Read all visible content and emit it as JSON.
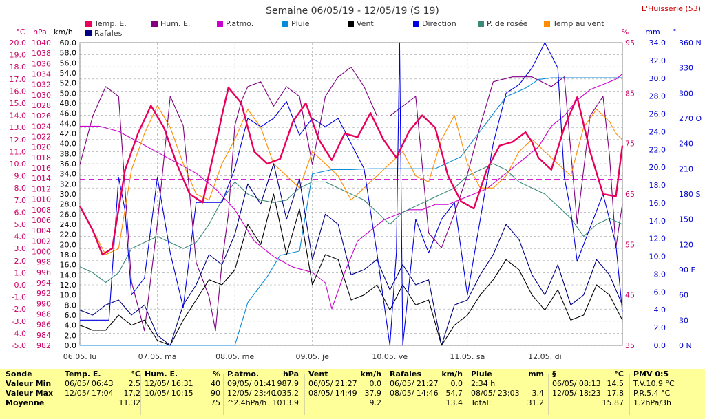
{
  "title": "Semaine 06/05/19 - 12/05/19 (S 19)",
  "station": "L'Huisserie (53)",
  "colors": {
    "temp": "#e8005a",
    "hum": "#800080",
    "patmo": "#cc00cc",
    "pluie": "#0a8ad8",
    "vent": "#000000",
    "direction": "#0000e0",
    "rosee": "#3a8a7a",
    "tempvent": "#ff8c00",
    "rafales": "#000080",
    "grid": "#9aa0a0",
    "axis_left": "#cc0066",
    "axis_right": "#0000cc"
  },
  "chart_data": {
    "type": "line",
    "title": "Semaine 06/05/19 - 12/05/19 (S 19)",
    "x_labels": [
      "06.05. lu",
      "07.05. ma",
      "08.05. me",
      "09.05. je",
      "10.05. ve",
      "11.05. sa",
      "12.05. di"
    ],
    "x_unit": "hours since 06/05 00:00",
    "xlim": [
      0,
      168
    ],
    "axes": {
      "temp": {
        "unit": "°C",
        "ticks": [
          "20.0",
          "19.0",
          "18.0",
          "17.0",
          "16.0",
          "15.0",
          "14.0",
          "13.0",
          "12.0",
          "11.0",
          "10.0",
          "9.0",
          "8.0",
          "7.0",
          "6.0",
          "5.0",
          "4.0",
          "3.0",
          "2.0",
          "1.0",
          "0.0",
          "-1.0",
          "-2.0",
          "-3.0",
          "-4.0",
          "-5.0"
        ],
        "range": [
          -5,
          20
        ]
      },
      "press": {
        "unit": "hPa",
        "ticks": [
          "1040",
          "1038",
          "1036",
          "1034",
          "1032",
          "1030",
          "1028",
          "1026",
          "1024",
          "1022",
          "1020",
          "1018",
          "1016",
          "1014",
          "1012",
          "1010",
          "1008",
          "1006",
          "1004",
          "1002",
          "1000",
          "998",
          "996",
          "994",
          "992",
          "990",
          "988",
          "986",
          "984",
          "982"
        ],
        "range": [
          982,
          1040
        ]
      },
      "wind": {
        "unit": "km/h",
        "ticks": [
          "60.0",
          "58.0",
          "56.0",
          "54.0",
          "52.0",
          "50.0",
          "48.0",
          "46.0",
          "44.0",
          "42.0",
          "40.0",
          "38.0",
          "36.0",
          "34.0",
          "32.0",
          "30.0",
          "28.0",
          "26.0",
          "24.0",
          "22.0",
          "20.0",
          "18.0",
          "16.0",
          "14.0",
          "12.0",
          "10.0",
          "8.0",
          "6.0",
          "4.0",
          "2.0",
          "0.0"
        ],
        "range": [
          0,
          60
        ]
      },
      "hum": {
        "unit": "%",
        "ticks": [
          "95",
          "85",
          "75",
          "65",
          "55",
          "45",
          "35"
        ],
        "range": [
          35,
          97
        ]
      },
      "rain": {
        "unit": "mm",
        "ticks": [
          "34.0",
          "32.0",
          "30.0",
          "28.0",
          "26.0",
          "24.0",
          "22.0",
          "20.0",
          "18.0",
          "16.0",
          "14.0",
          "12.0",
          "10.0",
          "8.0",
          "6.0",
          "4.0",
          "2.0",
          "0.0"
        ],
        "range": [
          0,
          35.3
        ]
      },
      "dir": {
        "unit": "°",
        "ticks": [
          "360 N",
          "330",
          "300",
          "270 O",
          "240",
          "210",
          "180 S",
          "150",
          "120",
          "90 E",
          "60",
          "30",
          "0 N"
        ],
        "range": [
          0,
          360
        ]
      }
    },
    "series": [
      {
        "name": "Temp. E.",
        "axis": "temp",
        "key": "temp",
        "x": [
          0,
          4,
          7,
          10,
          14,
          18,
          22,
          26,
          30,
          34,
          38,
          42,
          44,
          46,
          50,
          54,
          58,
          62,
          66,
          70,
          74,
          78,
          82,
          86,
          90,
          94,
          98,
          102,
          106,
          110,
          114,
          118,
          122,
          126,
          130,
          134,
          138,
          140,
          142,
          146,
          150,
          154,
          158,
          162,
          166,
          168
        ],
        "y": [
          6.5,
          4.5,
          2.5,
          3,
          9.5,
          12.5,
          14.8,
          13,
          10,
          7.5,
          6.8,
          11.5,
          14,
          16.3,
          15,
          11,
          10,
          10.4,
          13.5,
          15,
          12,
          10.3,
          12.5,
          12.2,
          14.2,
          12,
          10.5,
          12.7,
          14,
          13,
          9,
          6.9,
          6.3,
          9.5,
          11.5,
          11.8,
          12.6,
          11.8,
          10.5,
          9.5,
          13,
          15.5,
          11,
          7.5,
          7.3,
          11.5
        ]
      },
      {
        "name": "Hum. E.",
        "axis": "hum",
        "key": "hum",
        "x": [
          0,
          4,
          8,
          12,
          16,
          20,
          24,
          28,
          32,
          36,
          40,
          42,
          44,
          46,
          48,
          50,
          52,
          56,
          60,
          64,
          68,
          72,
          76,
          80,
          84,
          88,
          92,
          96,
          100,
          104,
          108,
          112,
          116,
          120,
          124,
          128,
          134,
          140,
          146,
          150,
          154,
          158,
          162,
          164,
          166,
          168
        ],
        "y": [
          72,
          82,
          88,
          86,
          48,
          38,
          60,
          86,
          80,
          52,
          45,
          38,
          52,
          62,
          80,
          85,
          88,
          89,
          84,
          88,
          86,
          72,
          86,
          90,
          92,
          88,
          82,
          82,
          84,
          86,
          58,
          55,
          62,
          70,
          80,
          89,
          90,
          90,
          88,
          90,
          60,
          82,
          86,
          74,
          55,
          64
        ]
      },
      {
        "name": "P.atmo.",
        "axis": "press",
        "key": "patmo",
        "x": [
          0,
          6,
          12,
          18,
          24,
          30,
          36,
          42,
          48,
          54,
          60,
          66,
          72,
          76,
          78,
          82,
          86,
          90,
          94,
          98,
          102,
          106,
          110,
          114,
          118,
          122,
          126,
          130,
          134,
          138,
          142,
          146,
          150,
          154,
          158,
          162,
          166,
          168
        ],
        "y": [
          1024,
          1024,
          1023,
          1021,
          1019,
          1017,
          1015,
          1012,
          1008,
          1002,
          999,
          997,
          996,
          994,
          989,
          996,
          1002,
          1004,
          1006,
          1007,
          1008,
          1008,
          1009,
          1009,
          1010,
          1011,
          1012,
          1014,
          1016,
          1018,
          1020,
          1024,
          1026,
          1029,
          1031,
          1032,
          1033,
          1034
        ]
      },
      {
        "name": "Pluie",
        "axis": "rain",
        "key": "pluie",
        "x": [
          0,
          12,
          24,
          36,
          42,
          45,
          48,
          52,
          58,
          62,
          68,
          72,
          78,
          84,
          90,
          98,
          106,
          110,
          118,
          122,
          126,
          130,
          132,
          138,
          142,
          146,
          150,
          154,
          158,
          162,
          168
        ],
        "y": [
          0,
          0,
          0,
          0,
          0,
          0,
          0,
          5,
          8,
          10.5,
          11,
          20,
          20.5,
          20.5,
          20.6,
          20.6,
          20.6,
          20.6,
          22,
          24,
          26,
          28,
          29,
          30,
          31,
          31.2,
          31.2,
          31.2,
          31.2,
          31.2,
          31.2
        ]
      },
      {
        "name": "Vent",
        "axis": "wind",
        "key": "vent",
        "x": [
          0,
          4,
          8,
          12,
          16,
          20,
          24,
          28,
          32,
          36,
          40,
          44,
          48,
          52,
          56,
          60,
          64,
          68,
          72,
          76,
          80,
          84,
          88,
          92,
          96,
          100,
          104,
          108,
          112,
          116,
          120,
          124,
          128,
          132,
          136,
          140,
          144,
          148,
          152,
          156,
          160,
          164,
          168
        ],
        "y": [
          4,
          3,
          3,
          6,
          4,
          5,
          1,
          0,
          5,
          9,
          13,
          12,
          15,
          24,
          20,
          30,
          18,
          27,
          12,
          18,
          17,
          9,
          10,
          12,
          7,
          12,
          8,
          9,
          0,
          4,
          6,
          10,
          13,
          17,
          15,
          10,
          7,
          11,
          5,
          6,
          12,
          10,
          5
        ]
      },
      {
        "name": "Direction",
        "axis": "dir",
        "key": "direction",
        "x": [
          0,
          3,
          6,
          9,
          12,
          14,
          16,
          18,
          20,
          24,
          28,
          32,
          36,
          40,
          44,
          48,
          52,
          56,
          60,
          64,
          68,
          72,
          76,
          80,
          84,
          88,
          92,
          96,
          98,
          99,
          100,
          104,
          108,
          112,
          116,
          120,
          124,
          128,
          132,
          136,
          140,
          144,
          148,
          150,
          152,
          154,
          158,
          162,
          166,
          168
        ],
        "y": [
          30,
          30,
          30,
          30,
          200,
          160,
          60,
          70,
          80,
          200,
          110,
          45,
          170,
          170,
          170,
          210,
          270,
          260,
          270,
          290,
          250,
          270,
          260,
          270,
          240,
          210,
          110,
          0,
          110,
          360,
          0,
          150,
          110,
          150,
          170,
          60,
          150,
          240,
          300,
          310,
          330,
          360,
          330,
          200,
          160,
          100,
          140,
          180,
          120,
          40
        ]
      },
      {
        "name": "P. de rosée",
        "axis": "temp",
        "key": "rosee",
        "x": [
          0,
          4,
          8,
          12,
          16,
          20,
          24,
          28,
          32,
          36,
          40,
          44,
          48,
          52,
          56,
          60,
          64,
          68,
          72,
          76,
          80,
          84,
          88,
          92,
          96,
          100,
          104,
          108,
          112,
          116,
          120,
          124,
          128,
          132,
          136,
          140,
          144,
          148,
          152,
          156,
          160,
          164,
          168
        ],
        "y": [
          1.5,
          1,
          0.2,
          1,
          3,
          3.5,
          4,
          3.5,
          3,
          3.5,
          5,
          7,
          8.5,
          7.5,
          7,
          6.8,
          7,
          8,
          8.5,
          8.5,
          8,
          7.5,
          7,
          6,
          5,
          6,
          6.5,
          7,
          7.5,
          8,
          9,
          9.5,
          10,
          9.5,
          8.5,
          8,
          7.5,
          6.5,
          5.5,
          4,
          5,
          5.5,
          5
        ]
      },
      {
        "name": "Temp au vent",
        "axis": "temp",
        "key": "tempvent",
        "x": [
          0,
          4,
          8,
          12,
          16,
          20,
          24,
          28,
          32,
          36,
          40,
          44,
          48,
          52,
          56,
          60,
          64,
          68,
          72,
          76,
          80,
          84,
          88,
          92,
          96,
          100,
          104,
          108,
          112,
          116,
          120,
          124,
          128,
          132,
          136,
          140,
          144,
          148,
          152,
          156,
          160,
          164,
          166,
          168
        ],
        "y": [
          6.5,
          4.5,
          2.5,
          3,
          9.5,
          12.5,
          14.8,
          13,
          10,
          7.5,
          7,
          10,
          12,
          14.5,
          13,
          10,
          9,
          8,
          11,
          10,
          9,
          7,
          8,
          9,
          10,
          11,
          9,
          8.5,
          12,
          14,
          10,
          8,
          8,
          9,
          11,
          12,
          11,
          10,
          9,
          13,
          14.5,
          13.5,
          12.5,
          12
        ]
      },
      {
        "name": "Rafales",
        "axis": "wind",
        "key": "rafales",
        "x": [
          0,
          4,
          8,
          12,
          16,
          20,
          24,
          28,
          32,
          36,
          40,
          44,
          48,
          52,
          56,
          60,
          64,
          68,
          72,
          76,
          80,
          84,
          88,
          92,
          96,
          100,
          104,
          108,
          112,
          116,
          120,
          124,
          128,
          132,
          136,
          140,
          144,
          148,
          152,
          156,
          160,
          164,
          168
        ],
        "y": [
          7,
          6,
          8,
          9,
          6,
          8,
          2,
          0,
          8,
          12,
          18,
          16,
          22,
          32,
          28,
          36,
          25,
          33,
          17,
          26,
          24,
          14,
          15,
          17,
          11,
          16,
          12,
          13,
          0,
          8,
          9,
          14,
          18,
          24,
          21,
          14,
          10,
          16,
          8,
          10,
          17,
          14,
          8
        ]
      }
    ]
  },
  "legend": [
    {
      "key": "temp",
      "label": "Temp. E."
    },
    {
      "key": "hum",
      "label": "Hum. E."
    },
    {
      "key": "patmo",
      "label": "P.atmo."
    },
    {
      "key": "pluie",
      "label": "Pluie"
    },
    {
      "key": "vent",
      "label": "Vent"
    },
    {
      "key": "direction",
      "label": "Direction"
    },
    {
      "key": "rosee",
      "label": "P. de rosée"
    },
    {
      "key": "tempvent",
      "label": "Temp au vent"
    },
    {
      "key": "rafales",
      "label": "Rafales"
    }
  ],
  "hum_reference_value": 69,
  "stats": {
    "row_labels": [
      "Sonde",
      "Valeur Min",
      "Valeur Max",
      "Moyenne"
    ],
    "blocks": [
      {
        "name": "Temp. E.",
        "unit": "°C",
        "min_time": "06/05/ 06:43",
        "min": "2.5",
        "max_time": "12/05/ 17:04",
        "max": "17.2",
        "avg_label": "",
        "avg": "11.32"
      },
      {
        "name": "Hum. E.",
        "unit": "%",
        "min_time": "12/05/ 16:31",
        "min": "40",
        "max_time": "10/05/ 10:15",
        "max": "90",
        "avg_label": "",
        "avg": "75"
      },
      {
        "name": "P.atmo.",
        "unit": "hPa",
        "min_time": "09/05/ 01:41",
        "min": "987.9",
        "max_time": "12/05/ 23:40",
        "max": "1035.2",
        "avg_label": "^2.4hPa/h",
        "avg": "1013.9"
      },
      {
        "name": "Vent",
        "unit": "km/h",
        "min_time": "06/05/ 21:27",
        "min": "0.0",
        "max_time": "08/05/ 14:49",
        "max": "37.9",
        "avg_label": "",
        "avg": "9.2"
      },
      {
        "name": "Rafales",
        "unit": "km/h",
        "min_time": "06/05/ 21:27",
        "min": "0.0",
        "max_time": "08/05/ 14:46",
        "max": "54.7",
        "avg_label": "",
        "avg": "13.4"
      },
      {
        "name": "Pluie",
        "unit": "mm",
        "min_time": "2:34 h",
        "min": "",
        "max_time": "08/05/ 23:03",
        "max": "3.4",
        "avg_label": "Total:",
        "avg": "31.2"
      },
      {
        "name": "§",
        "unit": "°C",
        "min_time": "06/05/ 08:13",
        "min": "14.5",
        "max_time": "12/05/ 18:23",
        "max": "17.8",
        "avg_label": "",
        "avg": "15.87"
      },
      {
        "name": "PMV 0:5",
        "unit": "",
        "min_time": "T.V.10.9 °C",
        "min": "",
        "max_time": "P.R.5.4 °C",
        "max": "",
        "avg_label": "1.2hPa/3h",
        "avg": ""
      }
    ]
  }
}
